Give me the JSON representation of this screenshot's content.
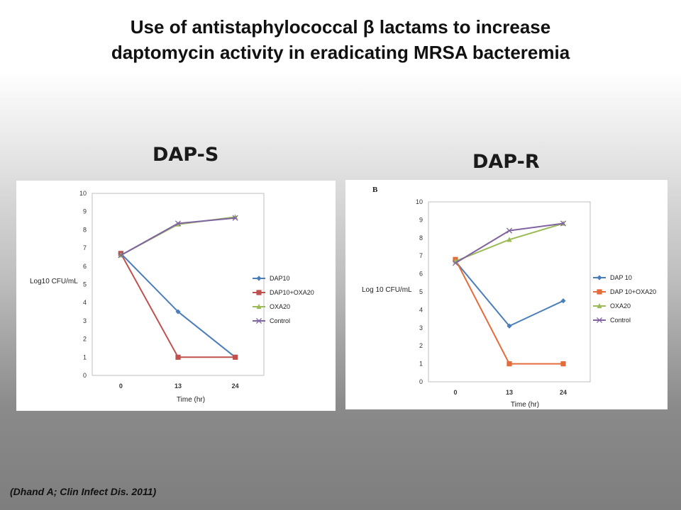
{
  "title": {
    "line1": "Use of antistaphylococcal  β lactams to increase",
    "line2": "daptomycin activity in eradicating MRSA bacteremia"
  },
  "panels": {
    "left_label": "DAP-S",
    "right_label": "DAP-R"
  },
  "citation": "(Dhand A; Clin Infect Dis. 2011)",
  "chart_data": [
    {
      "type": "line",
      "panel_letter": "",
      "categories": [
        "0",
        "13",
        "24"
      ],
      "ylabel": "Log10 CFU/mL",
      "xlabel": "Time (hr)",
      "ylim": [
        0,
        10
      ],
      "yticks": [
        "0",
        "1",
        "2",
        "3",
        "4",
        "5",
        "6",
        "7",
        "8",
        "9",
        "10"
      ],
      "grid": false,
      "legend_position": "right",
      "series": [
        {
          "name": "DAP10",
          "color": "#4a7ebb",
          "marker": "diamond",
          "values": [
            6.7,
            3.5,
            1.0
          ]
        },
        {
          "name": "DAP10+OXA20",
          "color": "#c0504d",
          "marker": "square",
          "values": [
            6.7,
            1.0,
            1.0
          ]
        },
        {
          "name": "OXA20",
          "color": "#9bbb59",
          "marker": "triangle",
          "values": [
            6.6,
            8.3,
            8.7
          ]
        },
        {
          "name": "Control",
          "color": "#8064a2",
          "marker": "x",
          "values": [
            6.6,
            8.35,
            8.65
          ]
        }
      ]
    },
    {
      "type": "line",
      "panel_letter": "B",
      "categories": [
        "0",
        "13",
        "24"
      ],
      "ylabel": "Log 10 CFU/mL",
      "xlabel": "Time (hr)",
      "ylim": [
        0,
        10
      ],
      "yticks": [
        "0",
        "1",
        "2",
        "3",
        "4",
        "5",
        "6",
        "7",
        "8",
        "9",
        "10"
      ],
      "grid": false,
      "legend_position": "right",
      "series": [
        {
          "name": "DAP 10",
          "color": "#4a7ebb",
          "marker": "diamond",
          "values": [
            6.7,
            3.1,
            4.5
          ]
        },
        {
          "name": "DAP 10+OXA20",
          "color": "#e36c3a",
          "marker": "square",
          "values": [
            6.8,
            1.0,
            1.0
          ]
        },
        {
          "name": "OXA20",
          "color": "#9bbb59",
          "marker": "triangle",
          "values": [
            6.7,
            7.9,
            8.8
          ]
        },
        {
          "name": "Control",
          "color": "#8064a2",
          "marker": "x",
          "values": [
            6.6,
            8.4,
            8.8
          ]
        }
      ]
    }
  ]
}
